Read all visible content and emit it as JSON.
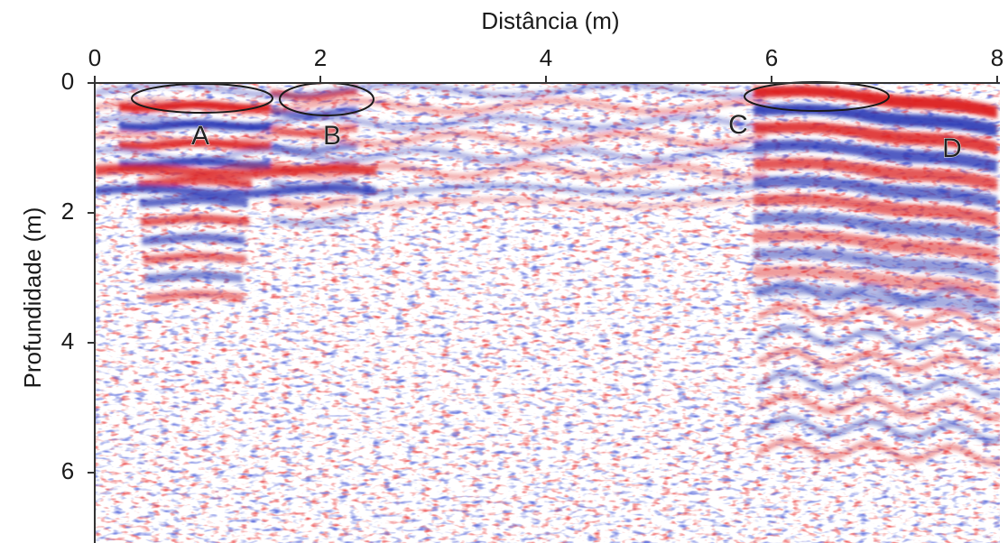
{
  "chart_data": {
    "type": "radargram",
    "title": "Distância (m)",
    "ylabel": "Profundidade (m)",
    "xlim": [
      0,
      8
    ],
    "ylim": [
      0,
      7
    ],
    "xticks": [
      0,
      2,
      4,
      6,
      8
    ],
    "yticks": [
      0,
      2,
      4,
      6
    ],
    "annotations": [
      "A",
      "B",
      "C",
      "D"
    ]
  }
}
